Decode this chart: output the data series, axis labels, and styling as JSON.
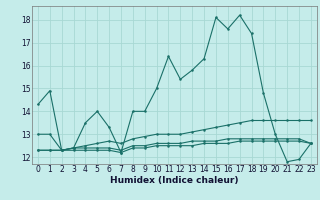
{
  "xlabel": "Humidex (Indice chaleur)",
  "bg_color": "#c5ecea",
  "grid_color": "#a8d8d4",
  "line_color": "#1a7068",
  "xlim": [
    -0.5,
    23.5
  ],
  "ylim": [
    11.7,
    18.6
  ],
  "yticks": [
    12,
    13,
    14,
    15,
    16,
    17,
    18
  ],
  "xticks": [
    0,
    1,
    2,
    3,
    4,
    5,
    6,
    7,
    8,
    9,
    10,
    11,
    12,
    13,
    14,
    15,
    16,
    17,
    18,
    19,
    20,
    21,
    22,
    23
  ],
  "line1": [
    14.3,
    14.9,
    12.3,
    12.4,
    13.5,
    14.0,
    13.3,
    12.2,
    14.0,
    14.0,
    15.0,
    16.4,
    15.4,
    15.8,
    16.3,
    18.1,
    17.6,
    18.2,
    17.4,
    14.8,
    13.0,
    11.8,
    11.9,
    12.6
  ],
  "line2": [
    13.0,
    13.0,
    12.3,
    12.4,
    12.5,
    12.6,
    12.7,
    12.6,
    12.8,
    12.9,
    13.0,
    13.0,
    13.0,
    13.1,
    13.2,
    13.3,
    13.4,
    13.5,
    13.6,
    13.6,
    13.6,
    13.6,
    13.6,
    13.6
  ],
  "line3": [
    12.3,
    12.3,
    12.3,
    12.4,
    12.4,
    12.4,
    12.4,
    12.3,
    12.5,
    12.5,
    12.6,
    12.6,
    12.6,
    12.7,
    12.7,
    12.7,
    12.8,
    12.8,
    12.8,
    12.8,
    12.8,
    12.8,
    12.8,
    12.6
  ],
  "line4": [
    12.3,
    12.3,
    12.3,
    12.3,
    12.3,
    12.3,
    12.3,
    12.2,
    12.4,
    12.4,
    12.5,
    12.5,
    12.5,
    12.5,
    12.6,
    12.6,
    12.6,
    12.7,
    12.7,
    12.7,
    12.7,
    12.7,
    12.7,
    12.6
  ]
}
